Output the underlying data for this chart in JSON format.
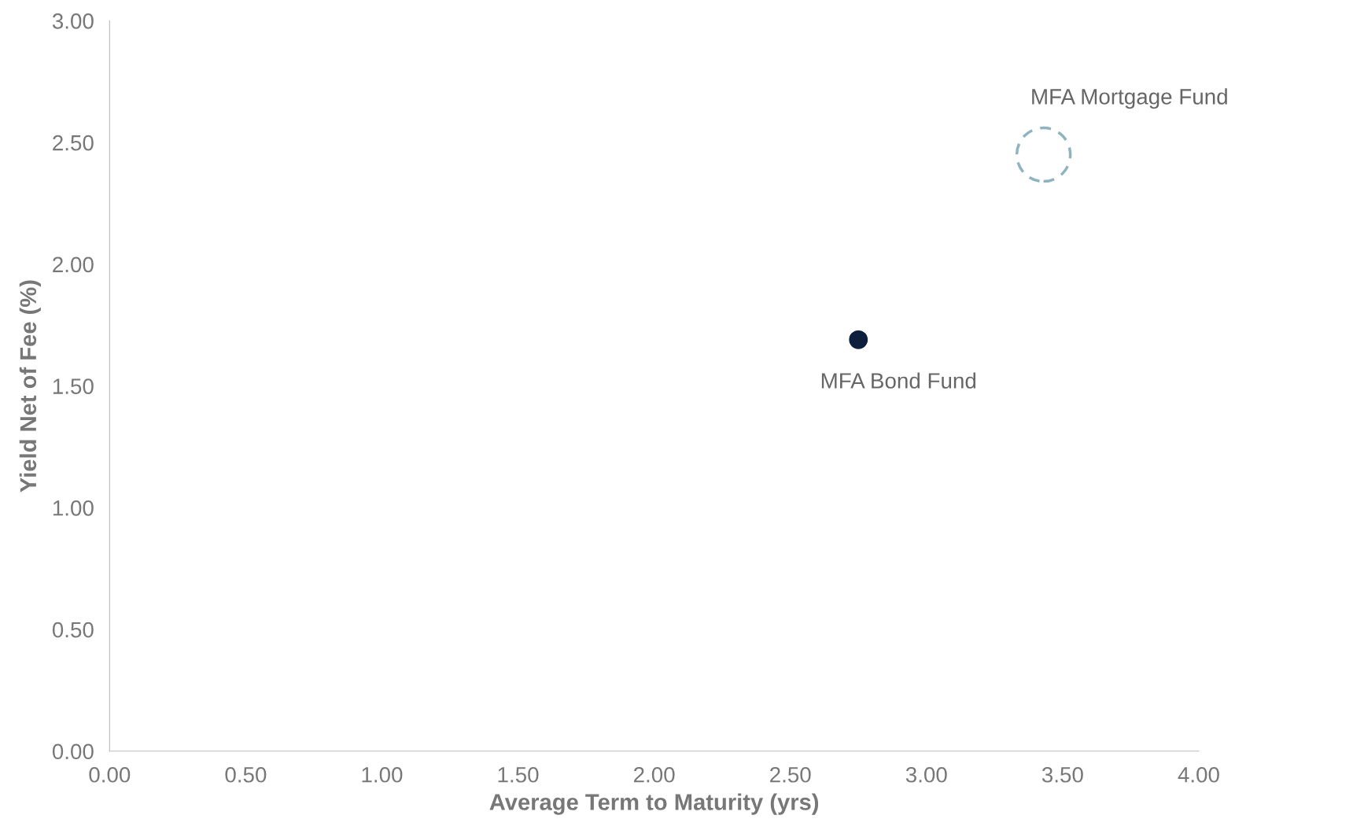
{
  "chart_data": {
    "type": "scatter",
    "xlabel": "Average Term to Maturity (yrs)",
    "ylabel": "Yield Net of Fee (%)",
    "series": [
      {
        "name": "MFA Bond Fund",
        "color": "#0d1f3c",
        "x": [
          2.75
        ],
        "values": [
          1.69
        ],
        "marker": "circle",
        "line_style": "solid"
      },
      {
        "name": "MFA Mortgage Fund",
        "color": "#8fb3c0",
        "x": [
          3.43
        ],
        "values": [
          2.45
        ],
        "marker": "circle",
        "line_style": "dashed"
      }
    ],
    "xlim": [
      0,
      4
    ],
    "ylim": [
      0,
      3
    ],
    "xticks": [
      {
        "value": 0,
        "label": "0.00"
      },
      {
        "value": 0.5,
        "label": "0.50"
      },
      {
        "value": 1,
        "label": "1.00"
      },
      {
        "value": 1.5,
        "label": "1.50"
      },
      {
        "value": 2,
        "label": "2.00"
      },
      {
        "value": 2.5,
        "label": "2.50"
      },
      {
        "value": 3,
        "label": "3.00"
      },
      {
        "value": 3.5,
        "label": "3.50"
      },
      {
        "value": 4,
        "label": "4.00"
      }
    ],
    "yticks": [
      {
        "value": 0,
        "label": "0.00"
      },
      {
        "value": 0.5,
        "label": "0.50"
      },
      {
        "value": 1,
        "label": "1.00"
      },
      {
        "value": 1.5,
        "label": "1.50"
      },
      {
        "value": 2,
        "label": "2.00"
      },
      {
        "value": 2.5,
        "label": "2.50"
      },
      {
        "value": 3,
        "label": "3.00"
      }
    ],
    "grid": false,
    "legend": false
  }
}
